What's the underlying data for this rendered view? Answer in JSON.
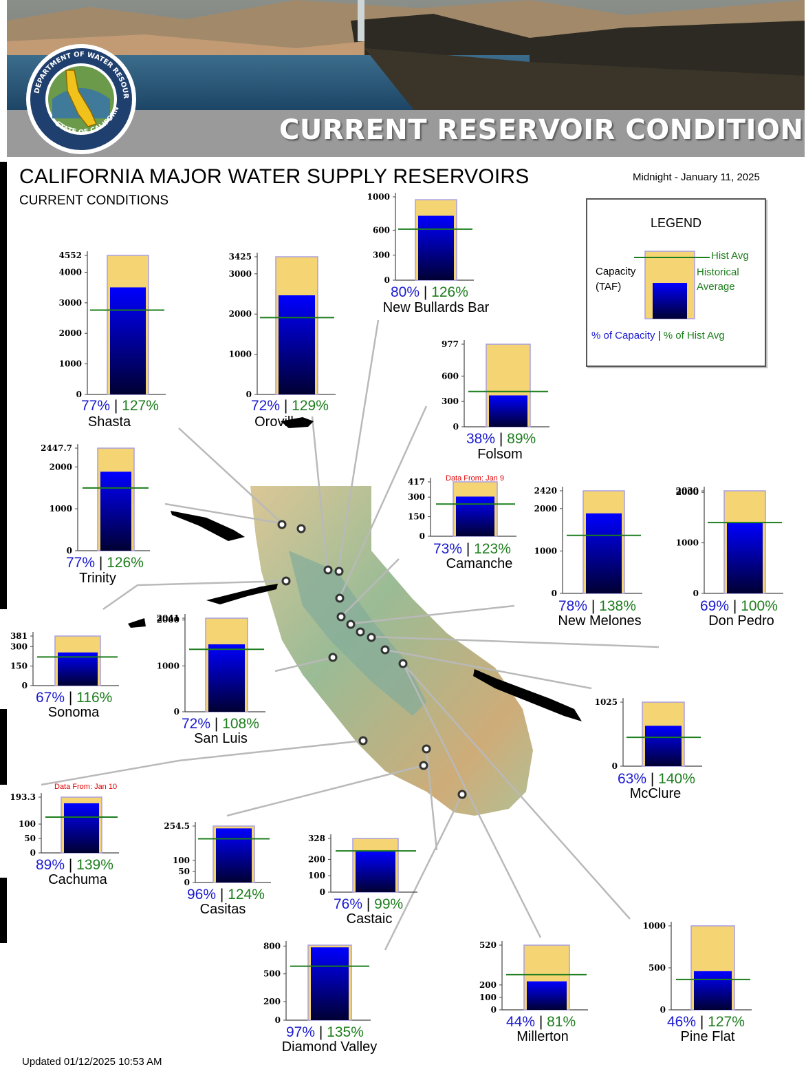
{
  "header": {
    "banner_title": "CURRENT RESERVOIR CONDITIONS",
    "seal_text_top": "DEPARTMENT OF WATER RESOURCES",
    "seal_text_bottom": "STATE OF CALIFORNIA"
  },
  "title": "CALIFORNIA MAJOR WATER SUPPLY RESERVOIRS",
  "subtitle": "CURRENT CONDITIONS",
  "date": "Midnight - January 11, 2025",
  "updated": "Updated 01/12/2025 10:53 AM",
  "colors": {
    "capacity_fill": "#f5d474",
    "storage_top": "#0000ff",
    "storage_bottom": "#000033",
    "hist_avg_line": "#1c7d1c",
    "pct_capacity": "#1a1ad0",
    "pct_hist_avg": "#1c7d1c",
    "note": "#e00000"
  },
  "legend": {
    "title": "LEGEND",
    "capacity_label": "Capacity",
    "capacity_unit": "(TAF)",
    "hist_avg_short": "Hist Avg",
    "hist_avg_long_1": "Historical",
    "hist_avg_long_2": "Average",
    "pct_capacity_label": "% of Capacity",
    "separator": "|",
    "pct_hist_label": "% of Hist Avg"
  },
  "chart_data": {
    "type": "bar",
    "units": "TAF",
    "reservoirs": [
      {
        "name": "Shasta",
        "capacity": 4552,
        "storage": 3505,
        "hist_avg": 2760,
        "pct_capacity": "77%",
        "pct_hist_avg": "127%",
        "ticks": [
          "4552",
          "4000",
          "3000",
          "2000",
          "1000",
          "0"
        ],
        "tick_values": [
          4552,
          4000,
          3000,
          2000,
          1000,
          0
        ],
        "note": ""
      },
      {
        "name": "Oroville",
        "capacity": 3425,
        "storage": 2466,
        "hist_avg": 1912,
        "pct_capacity": "72%",
        "pct_hist_avg": "129%",
        "ticks": [
          "3425",
          "3000",
          "2000",
          "1000",
          "0"
        ],
        "tick_values": [
          3425,
          3000,
          2000,
          1000,
          0
        ],
        "note": ""
      },
      {
        "name": "New Bullards Bar",
        "capacity": 966,
        "storage": 773,
        "hist_avg": 613,
        "pct_capacity": "80%",
        "pct_hist_avg": "126%",
        "ticks": [
          "1000",
          "600",
          "300",
          "0"
        ],
        "tick_values": [
          1000,
          600,
          300,
          0
        ],
        "note": ""
      },
      {
        "name": "Folsom",
        "capacity": 977,
        "storage": 371,
        "hist_avg": 417,
        "pct_capacity": "38%",
        "pct_hist_avg": "89%",
        "ticks": [
          "977",
          "600",
          "300",
          "0"
        ],
        "tick_values": [
          977,
          600,
          300,
          0
        ],
        "note": ""
      },
      {
        "name": "Trinity",
        "capacity": 2447.7,
        "storage": 1885,
        "hist_avg": 1496,
        "pct_capacity": "77%",
        "pct_hist_avg": "126%",
        "ticks": [
          "2447.7",
          "2000",
          "1000",
          "0"
        ],
        "tick_values": [
          2447.7,
          2000,
          1000,
          0
        ],
        "note": ""
      },
      {
        "name": "Camanche",
        "capacity": 417,
        "storage": 304,
        "hist_avg": 247,
        "pct_capacity": "73%",
        "pct_hist_avg": "123%",
        "ticks": [
          "417",
          "300",
          "150",
          "0"
        ],
        "tick_values": [
          417,
          300,
          150,
          0
        ],
        "note": "Data From: Jan 9"
      },
      {
        "name": "New Melones",
        "capacity": 2420,
        "storage": 1888,
        "hist_avg": 1368,
        "pct_capacity": "78%",
        "pct_hist_avg": "138%",
        "ticks": [
          "2420",
          "2000",
          "1000",
          "0"
        ],
        "tick_values": [
          2420,
          2000,
          1000,
          0
        ],
        "note": ""
      },
      {
        "name": "Don Pedro",
        "capacity": 2030,
        "storage": 1401,
        "hist_avg": 1401,
        "pct_capacity": "69%",
        "pct_hist_avg": "100%",
        "ticks": [
          "2030",
          "2000",
          "1000",
          "0"
        ],
        "tick_values": [
          2030,
          2000,
          1000,
          0
        ],
        "note": ""
      },
      {
        "name": "Sonoma",
        "capacity": 381,
        "storage": 255,
        "hist_avg": 220,
        "pct_capacity": "67%",
        "pct_hist_avg": "116%",
        "ticks": [
          "381",
          "300",
          "150",
          "0"
        ],
        "tick_values": [
          381,
          300,
          150,
          0
        ],
        "note": ""
      },
      {
        "name": "San Luis",
        "capacity": 2041,
        "storage": 1470,
        "hist_avg": 1361,
        "pct_capacity": "72%",
        "pct_hist_avg": "108%",
        "ticks": [
          "2041",
          "2000",
          "1000",
          "0"
        ],
        "tick_values": [
          2041,
          2000,
          1000,
          0
        ],
        "note": ""
      },
      {
        "name": "McClure",
        "capacity": 1025,
        "storage": 646,
        "hist_avg": 461,
        "pct_capacity": "63%",
        "pct_hist_avg": "140%",
        "ticks": [
          "1025",
          "0"
        ],
        "tick_values": [
          1025,
          0
        ],
        "note": ""
      },
      {
        "name": "Cachuma",
        "capacity": 193.3,
        "storage": 172,
        "hist_avg": 124,
        "pct_capacity": "89%",
        "pct_hist_avg": "139%",
        "ticks": [
          "193.3",
          "100",
          "50",
          "0"
        ],
        "tick_values": [
          193.3,
          100,
          50,
          0
        ],
        "note": "Data From: Jan 10"
      },
      {
        "name": "Casitas",
        "capacity": 254.5,
        "storage": 244,
        "hist_avg": 197,
        "pct_capacity": "96%",
        "pct_hist_avg": "124%",
        "ticks": [
          "254.5",
          "100",
          "50",
          "0"
        ],
        "tick_values": [
          254.5,
          100,
          50,
          0
        ],
        "note": ""
      },
      {
        "name": "Castaic",
        "capacity": 328,
        "storage": 249,
        "hist_avg": 252,
        "pct_capacity": "76%",
        "pct_hist_avg": "99%",
        "ticks": [
          "328",
          "200",
          "100",
          "0"
        ],
        "tick_values": [
          328,
          200,
          100,
          0
        ],
        "note": ""
      },
      {
        "name": "Diamond Valley",
        "capacity": 810,
        "storage": 786,
        "hist_avg": 582,
        "pct_capacity": "97%",
        "pct_hist_avg": "135%",
        "ticks": [
          "800",
          "500",
          "200",
          "0"
        ],
        "tick_values": [
          800,
          500,
          200,
          0
        ],
        "note": ""
      },
      {
        "name": "Millerton",
        "capacity": 520,
        "storage": 229,
        "hist_avg": 283,
        "pct_capacity": "44%",
        "pct_hist_avg": "81%",
        "ticks": [
          "520",
          "200",
          "100",
          "0"
        ],
        "tick_values": [
          520,
          200,
          100,
          0
        ],
        "note": ""
      },
      {
        "name": "Pine Flat",
        "capacity": 1000,
        "storage": 460,
        "hist_avg": 362,
        "pct_capacity": "46%",
        "pct_hist_avg": "127%",
        "ticks": [
          "1000",
          "500",
          "0"
        ],
        "tick_values": [
          1000,
          500,
          0
        ],
        "note": ""
      }
    ]
  }
}
